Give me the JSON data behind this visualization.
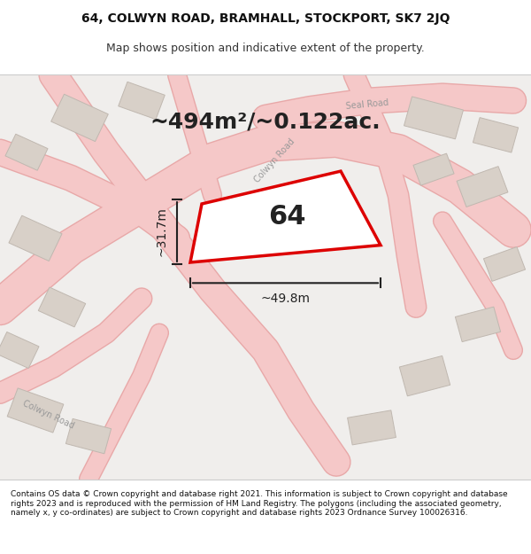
{
  "title_line1": "64, COLWYN ROAD, BRAMHALL, STOCKPORT, SK7 2JQ",
  "title_line2": "Map shows position and indicative extent of the property.",
  "area_text": "~494m²/~0.122ac.",
  "plot_number": "64",
  "dim_width": "~49.8m",
  "dim_height": "~31.7m",
  "footer_text": "Contains OS data © Crown copyright and database right 2021. This information is subject to Crown copyright and database rights 2023 and is reproduced with the permission of HM Land Registry. The polygons (including the associated geometry, namely x, y co-ordinates) are subject to Crown copyright and database rights 2023 Ordnance Survey 100026316.",
  "bg_color": "#f5f5f5",
  "map_bg": "#f0eeec",
  "road_color_light": "#f5b8b8",
  "road_color_dark": "#e8a0a0",
  "building_color": "#d8d0c8",
  "building_edge": "#c0b8b0",
  "plot_edge_color": "#dd0000",
  "plot_fill_color": "#ffffff",
  "dimension_color": "#222222",
  "road_label_color": "#888888",
  "title_fontsize": 10,
  "subtitle_fontsize": 9,
  "footer_fontsize": 6.5
}
